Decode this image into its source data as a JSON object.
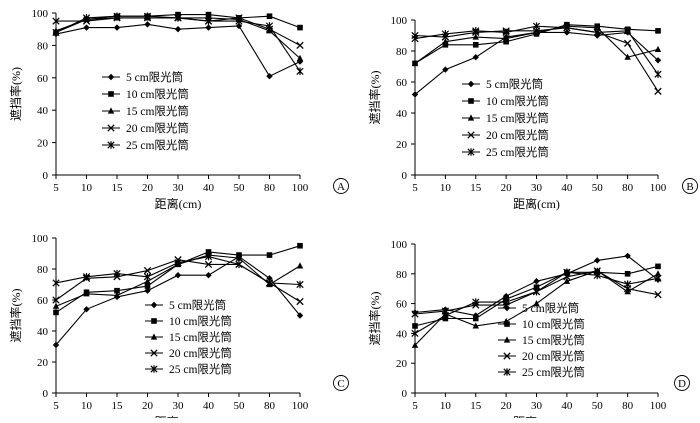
{
  "colors": {
    "line": "#000000",
    "background": "#ffffff"
  },
  "chart_data": [
    {
      "type": "line",
      "panel_label": "A",
      "xlabel": "距离(cm)",
      "ylabel": "遮挡率(%)",
      "categories": [
        "5",
        "10",
        "15",
        "20",
        "30",
        "40",
        "50",
        "80",
        "100"
      ],
      "yticks": [
        "0",
        "20",
        "40",
        "60",
        "80",
        "100"
      ],
      "ylim": [
        0,
        100
      ],
      "grid": false,
      "legend_position": "center-left",
      "series": [
        {
          "name": "5 cm限光筒",
          "marker": "diamond",
          "values": [
            87,
            91,
            91,
            93,
            90,
            91,
            92,
            61,
            70
          ]
        },
        {
          "name": "10 cm限光筒",
          "marker": "square",
          "values": [
            88,
            96,
            98,
            98,
            99,
            99,
            97,
            98,
            91
          ]
        },
        {
          "name": "15 cm限光筒",
          "marker": "triangle",
          "values": [
            89,
            96,
            97,
            97,
            97,
            97,
            96,
            89,
            72
          ]
        },
        {
          "name": "20 cm限光筒",
          "marker": "x",
          "values": [
            95,
            95,
            97,
            97,
            97,
            95,
            97,
            90,
            80
          ]
        },
        {
          "name": "25 cm限光筒",
          "marker": "star",
          "values": [
            88,
            97,
            98,
            98,
            97,
            95,
            95,
            92,
            64
          ]
        }
      ]
    },
    {
      "type": "line",
      "panel_label": "B",
      "xlabel": "距离(cm)",
      "ylabel": "遮挡率(%)",
      "categories": [
        "5",
        "10",
        "15",
        "20",
        "30",
        "40",
        "50",
        "80",
        "100"
      ],
      "yticks": [
        "0",
        "20",
        "40",
        "60",
        "80",
        "100"
      ],
      "ylim": [
        0,
        100
      ],
      "grid": false,
      "legend_position": "center-right",
      "series": [
        {
          "name": "5 cm限光筒",
          "marker": "diamond",
          "values": [
            52,
            68,
            76,
            89,
            92,
            92,
            90,
            92,
            74
          ]
        },
        {
          "name": "10 cm限光筒",
          "marker": "square",
          "values": [
            72,
            84,
            84,
            86,
            91,
            97,
            96,
            94,
            93
          ]
        },
        {
          "name": "15 cm限光筒",
          "marker": "triangle",
          "values": [
            72,
            86,
            89,
            88,
            92,
            96,
            95,
            76,
            81
          ]
        },
        {
          "name": "20 cm限光筒",
          "marker": "x",
          "values": [
            90,
            89,
            92,
            93,
            93,
            95,
            92,
            85,
            54
          ]
        },
        {
          "name": "25 cm限光筒",
          "marker": "star",
          "values": [
            88,
            91,
            93,
            92,
            96,
            95,
            92,
            93,
            65
          ]
        }
      ]
    },
    {
      "type": "line",
      "panel_label": "C",
      "xlabel": "距离(cm)",
      "ylabel": "遮挡率(%)",
      "categories": [
        "5",
        "10",
        "15",
        "20",
        "30",
        "40",
        "50",
        "80",
        "100"
      ],
      "yticks": [
        "0",
        "20",
        "40",
        "60",
        "80",
        "100"
      ],
      "ylim": [
        0,
        100
      ],
      "grid": false,
      "legend_position": "bottom-right",
      "series": [
        {
          "name": "5 cm限光筒",
          "marker": "diamond",
          "values": [
            31,
            54,
            62,
            66,
            76,
            76,
            88,
            74,
            50
          ]
        },
        {
          "name": "10 cm限光筒",
          "marker": "square",
          "values": [
            52,
            65,
            66,
            69,
            83,
            91,
            89,
            89,
            95
          ]
        },
        {
          "name": "15 cm限光筒",
          "marker": "triangle",
          "values": [
            56,
            64,
            63,
            72,
            83,
            89,
            87,
            70,
            82
          ]
        },
        {
          "name": "20 cm限光筒",
          "marker": "x",
          "values": [
            60,
            74,
            75,
            79,
            86,
            83,
            83,
            71,
            59
          ]
        },
        {
          "name": "25 cm限光筒",
          "marker": "star",
          "values": [
            71,
            75,
            77,
            75,
            84,
            88,
            83,
            71,
            70
          ]
        }
      ]
    },
    {
      "type": "line",
      "panel_label": "D",
      "xlabel": "距离(cm)",
      "ylabel": "遮挡率(%)",
      "categories": [
        "5",
        "10",
        "15",
        "20",
        "30",
        "40",
        "50",
        "80",
        "100"
      ],
      "yticks": [
        "0",
        "20",
        "40",
        "60",
        "80",
        "100"
      ],
      "ylim": [
        0,
        100
      ],
      "grid": false,
      "legend_position": "bottom-right",
      "series": [
        {
          "name": "5 cm限光筒",
          "marker": "diamond",
          "values": [
            54,
            56,
            52,
            65,
            75,
            80,
            89,
            92,
            76
          ]
        },
        {
          "name": "10 cm限光筒",
          "marker": "square",
          "values": [
            45,
            50,
            50,
            63,
            71,
            81,
            81,
            80,
            85
          ]
        },
        {
          "name": "15 cm限光筒",
          "marker": "triangle",
          "values": [
            32,
            53,
            45,
            48,
            60,
            75,
            82,
            68,
            80
          ]
        },
        {
          "name": "20 cm限光筒",
          "marker": "x",
          "values": [
            53,
            55,
            59,
            59,
            68,
            78,
            82,
            70,
            66
          ]
        },
        {
          "name": "25 cm限光筒",
          "marker": "star",
          "values": [
            40,
            52,
            61,
            61,
            68,
            81,
            79,
            73,
            77
          ]
        }
      ]
    }
  ]
}
